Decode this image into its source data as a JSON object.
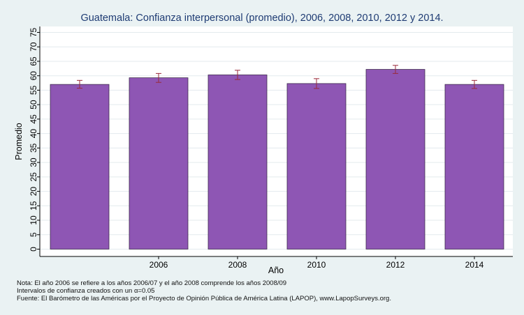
{
  "chart_data": {
    "type": "bar",
    "title": "Guatemala: Confianza interpersonal (promedio), 2006, 2008, 2010, 2012 y 2014.",
    "xlabel": "Año",
    "ylabel": "Promedio",
    "categories": [
      "",
      "2006",
      "2008",
      "2010",
      "2012",
      "2014"
    ],
    "values": [
      57.0,
      59.3,
      60.3,
      57.3,
      62.2,
      57.0
    ],
    "error_low": [
      55.7,
      57.7,
      58.7,
      55.6,
      60.8,
      55.6
    ],
    "error_high": [
      58.4,
      60.8,
      61.9,
      59.0,
      63.6,
      58.4
    ],
    "ylim": [
      0,
      75
    ],
    "yticks": [
      0,
      5,
      10,
      15,
      20,
      25,
      30,
      35,
      40,
      45,
      50,
      55,
      60,
      65,
      70,
      75
    ],
    "grid": true,
    "bar_color": "#8e56b4",
    "error_color": "#9a2a3a"
  },
  "notes": {
    "line1": "Nota: El año 2006 se refiere a los años 2006/07 y el año 2008 comprende los años 2008/09",
    "line2": "Intervalos de confianza creados con un α=0.05",
    "line3": "Fuente: El Barómetro de las Américas por el Proyecto de Opinión Pública de América Latina (LAPOP), www.LapopSurveys.org."
  }
}
